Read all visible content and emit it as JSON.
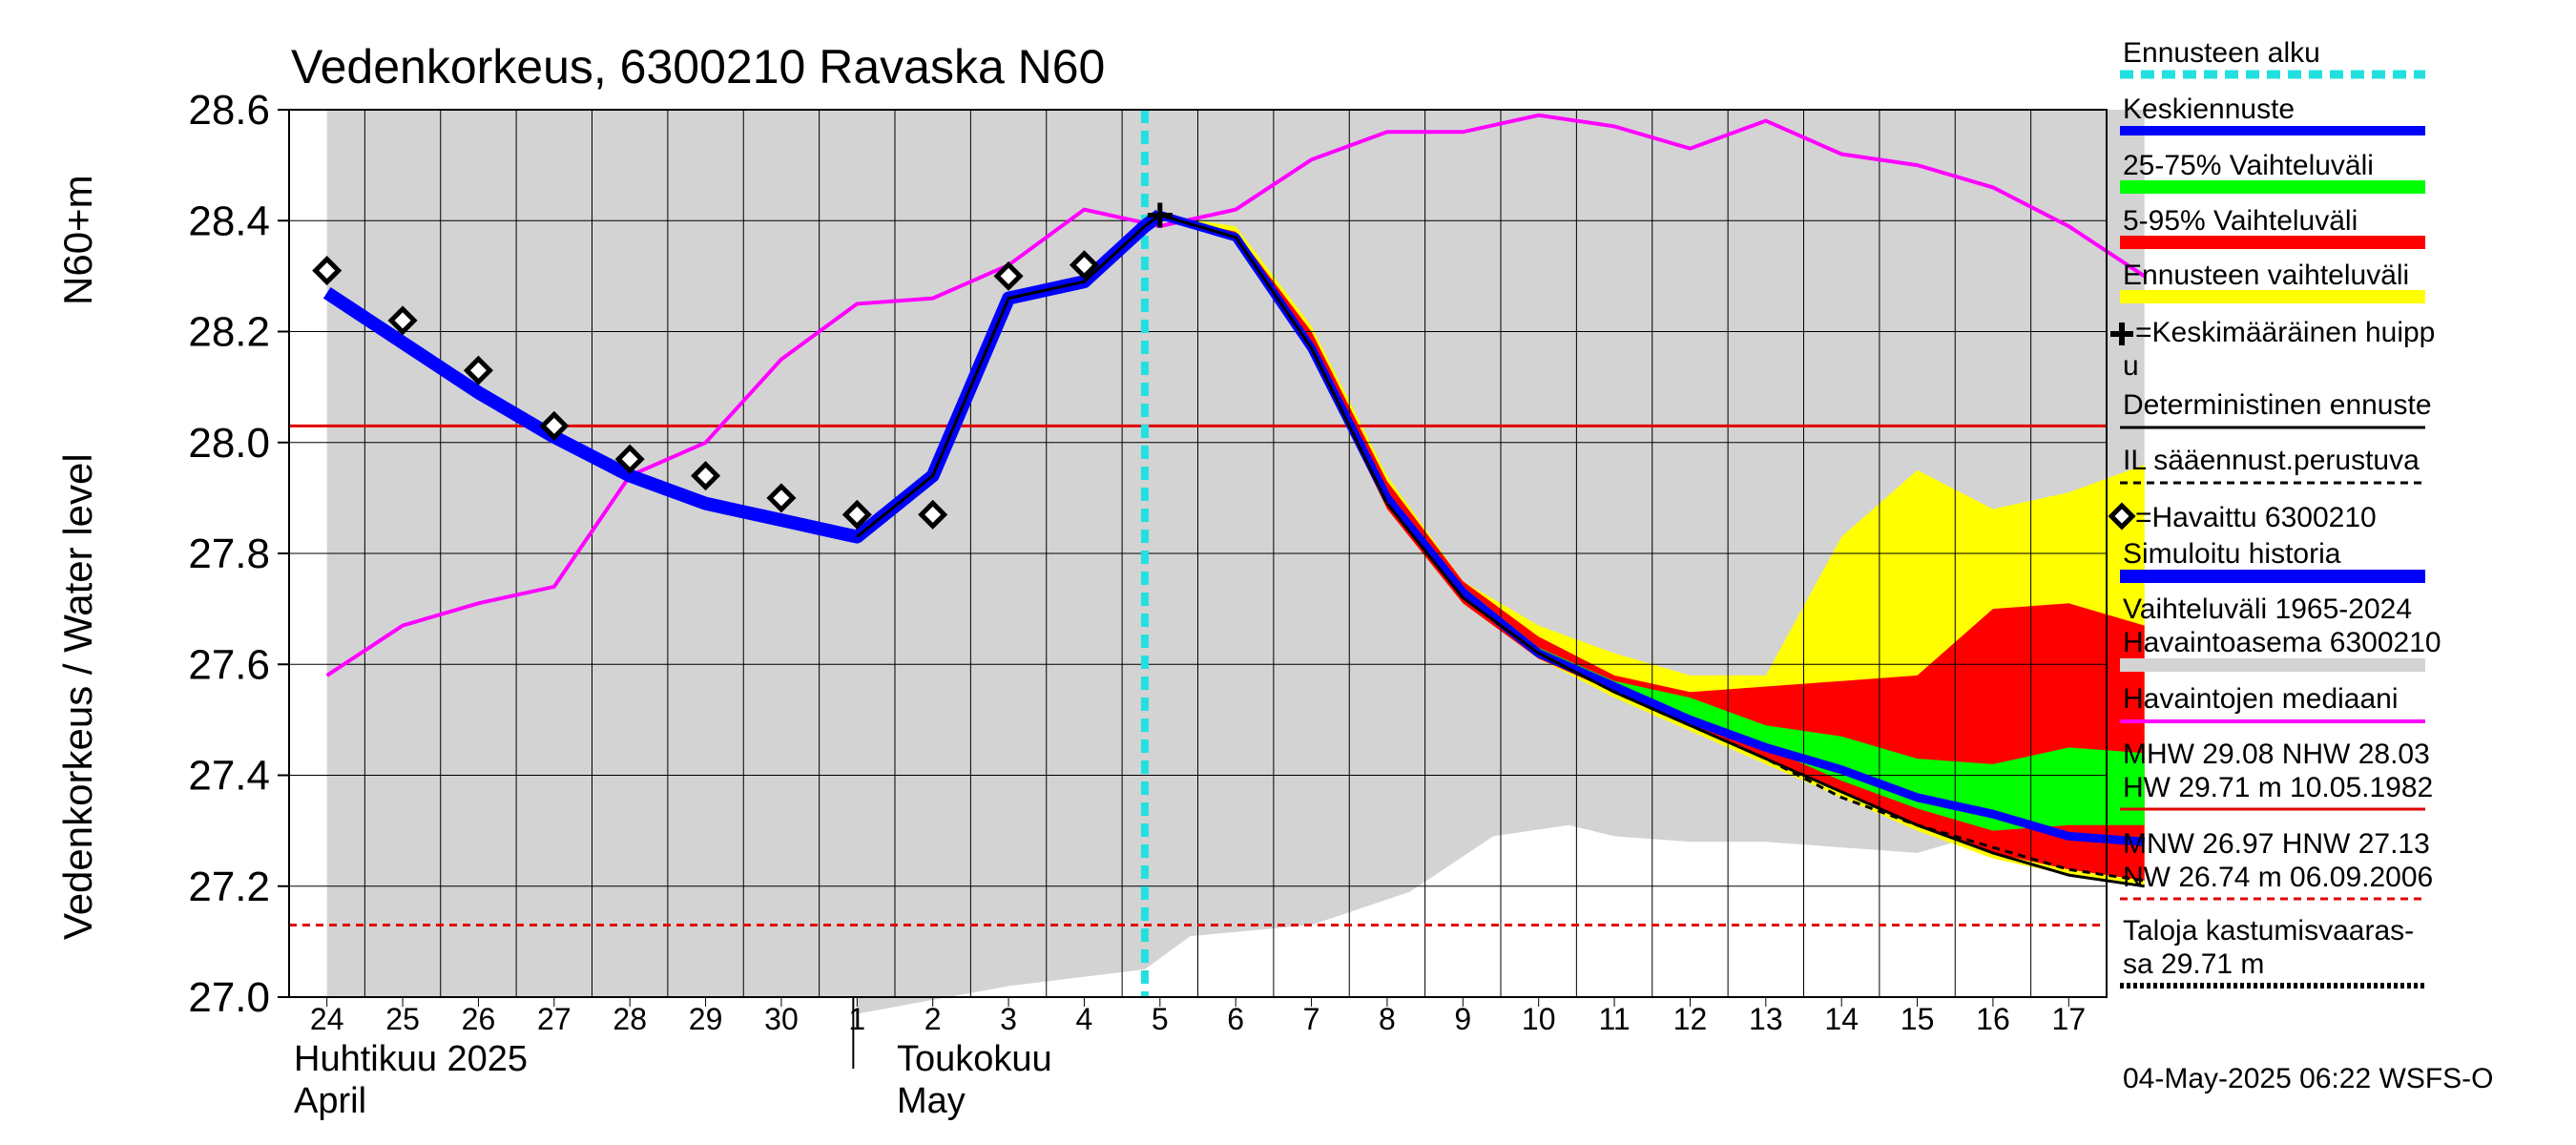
{
  "chart_data": {
    "type": "area",
    "title": "Vedenkorkeus, 6300210 Ravaska N60",
    "ylabel_main": "Vedenkorkeus / Water level",
    "ylabel_unit": "N60+m",
    "ylim": [
      27.0,
      28.6
    ],
    "yticks": [
      "27.0",
      "27.2",
      "27.4",
      "27.6",
      "27.8",
      "28.0",
      "28.2",
      "28.4",
      "28.6"
    ],
    "x_days": [
      "24",
      "25",
      "26",
      "27",
      "28",
      "29",
      "30",
      "1",
      "2",
      "3",
      "4",
      "5",
      "6",
      "7",
      "8",
      "9",
      "10",
      "11",
      "12",
      "13",
      "14",
      "15",
      "16",
      "17"
    ],
    "months": [
      {
        "fi": "Huhtikuu  2025",
        "en": "April"
      },
      {
        "fi": "Toukokuu",
        "en": "May"
      }
    ],
    "forecast_start_day": 10.8,
    "hw_line": 28.03,
    "flood_line": 27.13,
    "history_band": {
      "days": [
        0,
        7,
        7.01,
        9,
        10.8,
        11.4,
        13,
        14.3,
        15.4,
        16.4,
        17,
        18,
        19,
        20,
        21,
        22,
        23,
        24
      ],
      "lower": [
        27.0,
        27.0,
        26.97,
        27.02,
        27.05,
        27.11,
        27.13,
        27.19,
        27.29,
        27.31,
        27.29,
        27.28,
        27.28,
        27.27,
        27.26,
        27.3,
        27.29,
        27.31
      ],
      "upper": [
        28.6,
        28.6,
        28.6,
        28.6,
        28.6,
        28.6,
        28.6,
        28.6,
        28.6,
        28.6,
        28.6,
        28.6,
        28.6,
        28.6,
        28.6,
        28.6,
        28.6,
        28.6
      ]
    },
    "median": {
      "days": [
        0,
        1,
        2,
        3,
        4,
        5,
        6,
        7,
        8,
        9,
        10,
        11,
        12,
        13,
        14,
        15,
        16,
        17,
        18,
        19,
        20,
        21,
        22,
        23,
        24
      ],
      "values": [
        27.58,
        27.67,
        27.71,
        27.74,
        27.94,
        28.0,
        28.15,
        28.25,
        28.26,
        28.32,
        28.42,
        28.39,
        28.42,
        28.51,
        28.56,
        28.56,
        28.59,
        28.57,
        28.53,
        28.58,
        28.52,
        28.5,
        28.46,
        28.39,
        28.3
      ]
    },
    "forecast_days": [
      11,
      12,
      13,
      14,
      15,
      16,
      17,
      18,
      19,
      20,
      21,
      22,
      23,
      24
    ],
    "forecast_range": {
      "lower": [
        28.41,
        28.37,
        28.16,
        27.88,
        27.71,
        27.61,
        27.54,
        27.48,
        27.42,
        27.36,
        27.3,
        27.25,
        27.22,
        27.2
      ],
      "upper": [
        28.41,
        28.39,
        28.21,
        27.94,
        27.75,
        27.67,
        27.62,
        27.58,
        27.58,
        27.83,
        27.95,
        27.88,
        27.91,
        27.96
      ]
    },
    "p5_95": {
      "lower": [
        28.41,
        28.37,
        28.16,
        27.88,
        27.71,
        27.61,
        27.55,
        27.49,
        27.43,
        27.37,
        27.31,
        27.26,
        27.23,
        27.21
      ],
      "upper": [
        28.41,
        28.38,
        28.2,
        27.93,
        27.75,
        27.65,
        27.58,
        27.55,
        27.56,
        27.57,
        27.58,
        27.7,
        27.71,
        27.67
      ]
    },
    "p25_75": {
      "lower": [
        28.41,
        28.37,
        28.17,
        27.89,
        27.72,
        27.62,
        27.55,
        27.5,
        27.45,
        27.39,
        27.34,
        27.3,
        27.31,
        27.31
      ],
      "upper": [
        28.41,
        28.37,
        28.18,
        27.91,
        27.74,
        27.63,
        27.57,
        27.54,
        27.49,
        27.47,
        27.43,
        27.42,
        27.45,
        27.44
      ]
    },
    "mean_forecast": {
      "values": [
        28.41,
        28.37,
        28.17,
        27.9,
        27.73,
        27.62,
        27.56,
        27.5,
        27.45,
        27.41,
        27.36,
        27.33,
        27.29,
        27.28
      ]
    },
    "deterministic": {
      "values": [
        28.41,
        28.37,
        28.17,
        27.89,
        27.72,
        27.62,
        27.55,
        27.49,
        27.43,
        27.37,
        27.31,
        27.26,
        27.22,
        27.2
      ]
    },
    "il_forecast": {
      "values": [
        28.41,
        28.37,
        28.17,
        27.89,
        27.72,
        27.62,
        27.55,
        27.49,
        27.43,
        27.36,
        27.31,
        27.27,
        27.23,
        27.21
      ]
    },
    "simulated_history": {
      "days": [
        0,
        1,
        2,
        3,
        4,
        5,
        6,
        7,
        8,
        9,
        10,
        10.8,
        11
      ],
      "values": [
        28.27,
        28.18,
        28.09,
        28.01,
        27.94,
        27.89,
        27.86,
        27.83,
        27.94,
        28.26,
        28.29,
        28.39,
        28.41
      ]
    },
    "observed": {
      "days": [
        0,
        1,
        2,
        3,
        4,
        5,
        6,
        7,
        8,
        9,
        10
      ],
      "values": [
        28.31,
        28.22,
        28.13,
        28.03,
        27.97,
        27.94,
        27.9,
        27.87,
        27.87,
        28.3,
        28.32
      ]
    },
    "mean_peak": {
      "day": 11,
      "value": 28.41
    }
  },
  "legend": [
    {
      "key": "forecast-start",
      "label": "Ennusteen alku",
      "color": "#22e0e0"
    },
    {
      "key": "mean-forecast",
      "label": "Keskiennuste",
      "color": "#0000ff"
    },
    {
      "key": "p25-75",
      "label": "25-75% Vaihteluväli",
      "color": "#00ff00"
    },
    {
      "key": "p5-95",
      "label": "5-95% Vaihteluväli",
      "color": "#ff0000"
    },
    {
      "key": "forecast-range",
      "label": "Ennusteen vaihteluväli",
      "color": "#ffff00"
    },
    {
      "key": "mean-peak",
      "label": "=Keskimääräinen huipp",
      "label2": "u",
      "color": "#000000"
    },
    {
      "key": "deterministic",
      "label": "Deterministinen ennuste",
      "color": "#000000"
    },
    {
      "key": "il-forecast",
      "label": "IL sääennust.perustuva",
      "color": "#000000"
    },
    {
      "key": "observed",
      "label": "=Havaittu 6300210",
      "color": "#000000"
    },
    {
      "key": "simulated",
      "label": "Simuloitu historia",
      "color": "#0000ff"
    },
    {
      "key": "history-band",
      "label": "Vaihteluväli 1965-2024",
      "label2": " Havaintoasema 6300210",
      "color": "#d3d3d3"
    },
    {
      "key": "median",
      "label": "Havaintojen mediaani",
      "color": "#ff00ff"
    }
  ],
  "stats": {
    "line1": "MHW  29.08 NHW  28.03",
    "line2": "HW  29.71 m 10.05.1982",
    "line3": "MNW  26.97 HNW  27.13",
    "line4": "NW  26.74 m 06.09.2006",
    "line5": "Taloja kastumisvaaras-",
    "line6": "sa 29.71 m"
  },
  "timestamp": "04-May-2025 06:22 WSFS-O"
}
